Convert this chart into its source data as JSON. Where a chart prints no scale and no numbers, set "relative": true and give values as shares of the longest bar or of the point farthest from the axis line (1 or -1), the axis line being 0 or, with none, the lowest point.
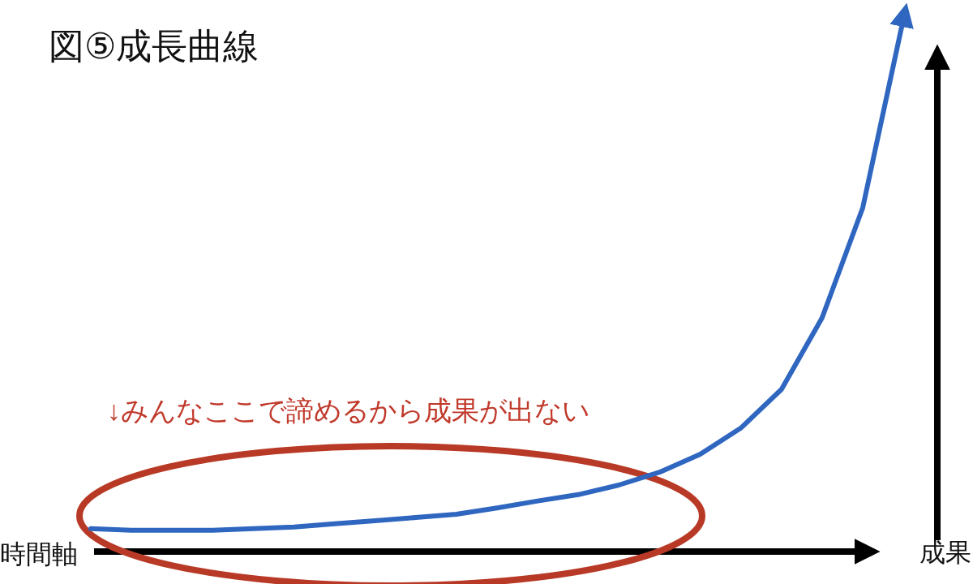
{
  "chart_data": {
    "type": "line",
    "relative": true,
    "title": "図⑤成長曲線",
    "xlabel": "時間軸",
    "ylabel": "成果",
    "annotations": [
      "↓みんなここで諦めるから成果が出ない"
    ],
    "categories": [
      null,
      null,
      null,
      null,
      null,
      null,
      null,
      null,
      null,
      null,
      null,
      null,
      null,
      null,
      null,
      null,
      null,
      null,
      null,
      null,
      null
    ],
    "series": [
      {
        "color": "#2f66c0",
        "values": [
          0.043,
          0.04,
          0.04,
          0.04,
          0.043,
          0.046,
          0.052,
          0.058,
          0.064,
          0.07,
          0.082,
          0.095,
          0.107,
          0.125,
          0.149,
          0.183,
          0.232,
          0.305,
          0.439,
          0.646,
          1
        ]
      }
    ]
  }
}
